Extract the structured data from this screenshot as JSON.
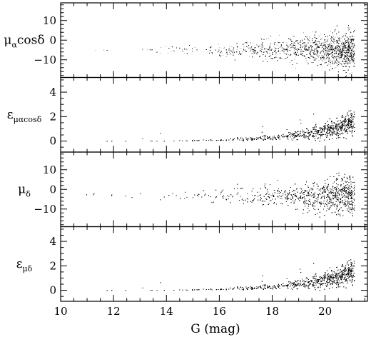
{
  "chart_data": {
    "type": "scatter",
    "x_label": "G (mag)",
    "x_ticks": [
      10,
      12,
      14,
      16,
      18,
      20
    ],
    "x_range": [
      10,
      21.6
    ],
    "grid": false,
    "panels": [
      {
        "y_label": {
          "main": "μ",
          "sub": "α",
          "rest": "cosδ"
        },
        "y_range": [
          -19,
          19
        ],
        "y_ticks": [
          -10,
          0,
          10
        ],
        "description_of_trend": "scatter centred near -5, spread grows toward faint G",
        "center": -5,
        "spread_bright": 0.6,
        "spread_faint": 5,
        "mode": "gaussian"
      },
      {
        "y_label": {
          "main": "ε",
          "sub": "μαcosδ",
          "rest": ""
        },
        "y_range": [
          -0.9,
          5.2
        ],
        "y_ticks": [
          0,
          2,
          4
        ],
        "center": 0,
        "mode": "error"
      },
      {
        "y_label": {
          "main": "μ",
          "sub": "δ",
          "rest": ""
        },
        "y_range": [
          -19,
          19
        ],
        "y_ticks": [
          -10,
          0,
          10
        ],
        "center": -3,
        "spread_bright": 0.6,
        "spread_faint": 5,
        "mode": "gaussian"
      },
      {
        "y_label": {
          "main": "ε",
          "sub": "μδ",
          "rest": ""
        },
        "y_range": [
          -0.9,
          5.2
        ],
        "y_ticks": [
          0,
          2,
          4
        ],
        "center": 0,
        "mode": "error"
      }
    ]
  }
}
